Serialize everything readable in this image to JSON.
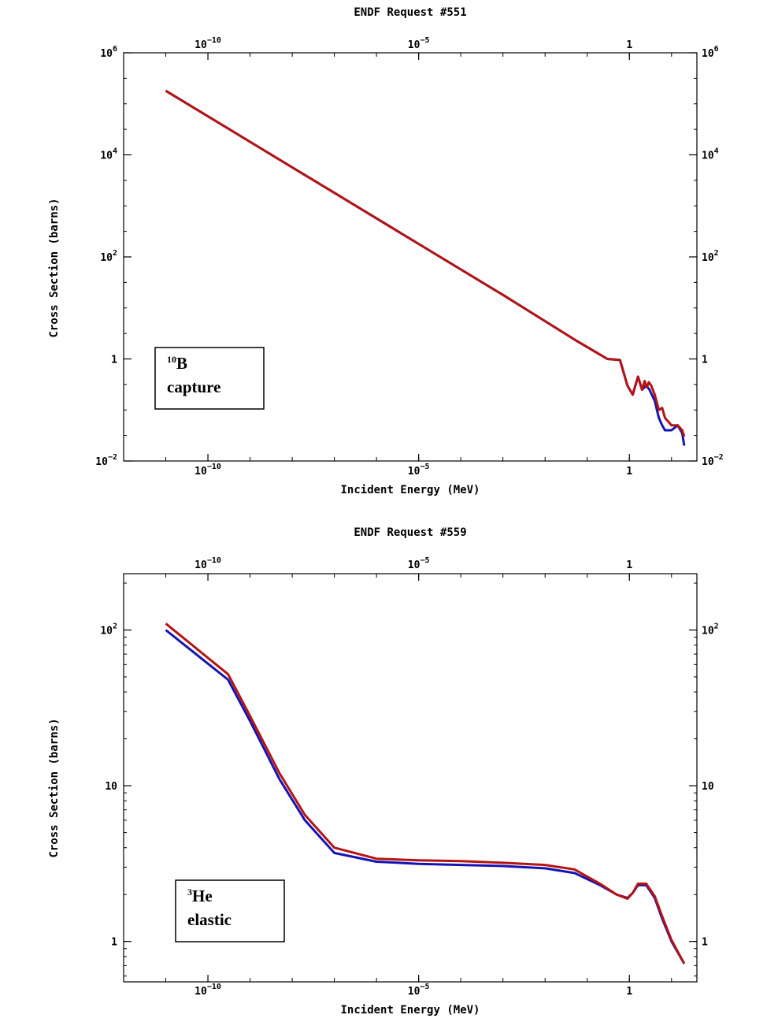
{
  "chart_data": [
    {
      "type": "line",
      "title": "ENDF Request #551",
      "xlabel": "Incident Energy (MeV)",
      "ylabel": "Cross Section (barns)",
      "xscale": "log",
      "yscale": "log",
      "xlim": [
        1e-12,
        40
      ],
      "ylim": [
        0.01,
        1000000
      ],
      "grid": false,
      "xticks": [
        {
          "v": 1e-10,
          "b": "10",
          "e": "−10"
        },
        {
          "v": 1e-05,
          "b": "10",
          "e": "−5"
        },
        {
          "v": 1,
          "b": "1",
          "e": ""
        }
      ],
      "yticks": [
        {
          "v": 0.01,
          "b": "10",
          "e": "−2"
        },
        {
          "v": 1,
          "b": "1",
          "e": ""
        },
        {
          "v": 100,
          "b": "10",
          "e": "2"
        },
        {
          "v": 10000,
          "b": "10",
          "e": "4"
        },
        {
          "v": 1000000,
          "b": "10",
          "e": "6"
        }
      ],
      "annotation": {
        "sup": "10",
        "main": "B",
        "line2": "capture"
      },
      "series": [
        {
          "color": "#1414b4",
          "x": [
            1e-11,
            1e-09,
            1e-07,
            1e-05,
            0.001,
            0.05,
            0.3,
            0.6,
            0.9,
            1.2,
            1.6,
            2.0,
            2.5,
            3.0,
            4.0,
            5.0,
            6.0,
            7.0,
            10.0,
            14.0,
            18.0,
            20.0
          ],
          "y": [
            180000,
            18000,
            1800,
            180,
            18,
            2.4,
            1.0,
            0.95,
            0.3,
            0.2,
            0.45,
            0.25,
            0.3,
            0.25,
            0.15,
            0.07,
            0.05,
            0.04,
            0.04,
            0.05,
            0.035,
            0.02
          ]
        },
        {
          "color": "#b41414",
          "x": [
            1e-11,
            1e-09,
            1e-07,
            1e-05,
            0.001,
            0.05,
            0.3,
            0.6,
            0.9,
            1.2,
            1.6,
            2.0,
            2.3,
            2.6,
            2.9,
            3.3,
            4.0,
            5.0,
            6.0,
            7.0,
            10.0,
            14.0,
            18.0,
            20.0
          ],
          "y": [
            180000,
            18000,
            1800,
            180,
            18,
            2.4,
            1.0,
            0.95,
            0.3,
            0.2,
            0.45,
            0.25,
            0.37,
            0.28,
            0.35,
            0.3,
            0.2,
            0.1,
            0.11,
            0.07,
            0.05,
            0.05,
            0.04,
            0.03
          ]
        }
      ]
    },
    {
      "type": "line",
      "title": "ENDF Request #559",
      "xlabel": "Incident Energy (MeV)",
      "ylabel": "Cross Section (barns)",
      "xscale": "log",
      "yscale": "log",
      "xlim": [
        1e-12,
        40
      ],
      "ylim": [
        0.55,
        230
      ],
      "grid": false,
      "xticks": [
        {
          "v": 1e-10,
          "b": "10",
          "e": "−10"
        },
        {
          "v": 1e-05,
          "b": "10",
          "e": "−5"
        },
        {
          "v": 1,
          "b": "1",
          "e": ""
        }
      ],
      "yticks": [
        {
          "v": 1,
          "b": "1",
          "e": ""
        },
        {
          "v": 10,
          "b": "10",
          "e": ""
        },
        {
          "v": 100,
          "b": "10",
          "e": "2"
        }
      ],
      "annotation": {
        "sup": "3",
        "main": "He",
        "line2": "elastic"
      },
      "series": [
        {
          "color": "#1414b4",
          "x": [
            1e-11,
            3e-10,
            1e-09,
            5e-09,
            2e-08,
            1e-07,
            1e-06,
            1e-05,
            0.0001,
            0.001,
            0.01,
            0.05,
            0.2,
            0.5,
            0.9,
            1.2,
            1.6,
            2.5,
            4.0,
            6.0,
            10.0,
            20.0
          ],
          "y": [
            100,
            48,
            26,
            11,
            6,
            3.7,
            3.25,
            3.15,
            3.1,
            3.05,
            2.95,
            2.75,
            2.3,
            2.0,
            1.9,
            2.05,
            2.3,
            2.3,
            1.9,
            1.4,
            1.0,
            0.72
          ]
        },
        {
          "color": "#b41414",
          "x": [
            1e-11,
            3e-10,
            1e-09,
            5e-09,
            2e-08,
            1e-07,
            1e-06,
            1e-05,
            0.0001,
            0.001,
            0.01,
            0.05,
            0.2,
            0.5,
            0.9,
            1.2,
            1.6,
            2.5,
            4.0,
            6.0,
            10.0,
            20.0
          ],
          "y": [
            110,
            52,
            28,
            12,
            6.5,
            4.0,
            3.4,
            3.32,
            3.28,
            3.2,
            3.1,
            2.9,
            2.35,
            2.0,
            1.88,
            2.05,
            2.35,
            2.35,
            1.95,
            1.45,
            1.02,
            0.72
          ]
        }
      ]
    }
  ]
}
